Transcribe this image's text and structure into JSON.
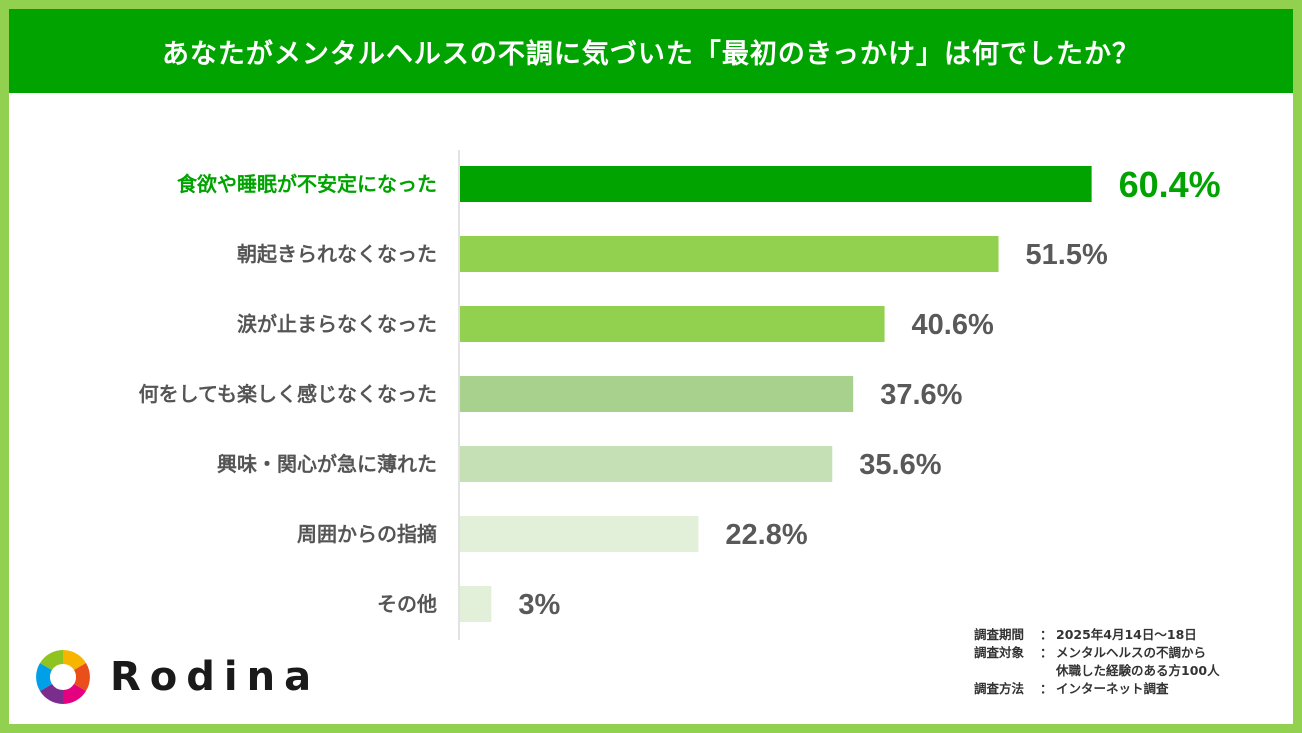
{
  "header": {
    "title": "あなたがメンタルヘルスの不調に気づいた「最初のきっかけ」は何でしたか？"
  },
  "chart_data": {
    "type": "bar",
    "orientation": "horizontal",
    "categories": [
      "食欲や睡眠が不安定になった",
      "朝起きられなくなった",
      "涙が止まらなくなった",
      "何をしても楽しく感じなくなった",
      "興味・関心が急に薄れた",
      "周囲からの指摘",
      "その他"
    ],
    "values": [
      60.4,
      51.5,
      40.6,
      37.6,
      35.6,
      22.8,
      3
    ],
    "value_labels": [
      "60.4%",
      "51.5%",
      "40.6%",
      "37.6%",
      "35.6%",
      "22.8%",
      "3%"
    ],
    "bar_colors": [
      "#00a300",
      "#92d050",
      "#92d050",
      "#a9d18e",
      "#c5e0b4",
      "#e2f0d9",
      "#e2f0d9"
    ],
    "highlight_color": "#00a300",
    "xlim": [
      0,
      70
    ],
    "grid": false
  },
  "notes": [
    {
      "key": "調査期間",
      "sep": "：",
      "value": "2025年4月14日～18日"
    },
    {
      "key": "調査対象",
      "sep": "：",
      "value": "メンタルヘルスの不調から\n休職した経験のある方100人"
    },
    {
      "key": "調査方法",
      "sep": "：",
      "value": "インターネット調査"
    }
  ],
  "logo": {
    "text": "Rodina",
    "icon": "rodina-logo-icon"
  }
}
